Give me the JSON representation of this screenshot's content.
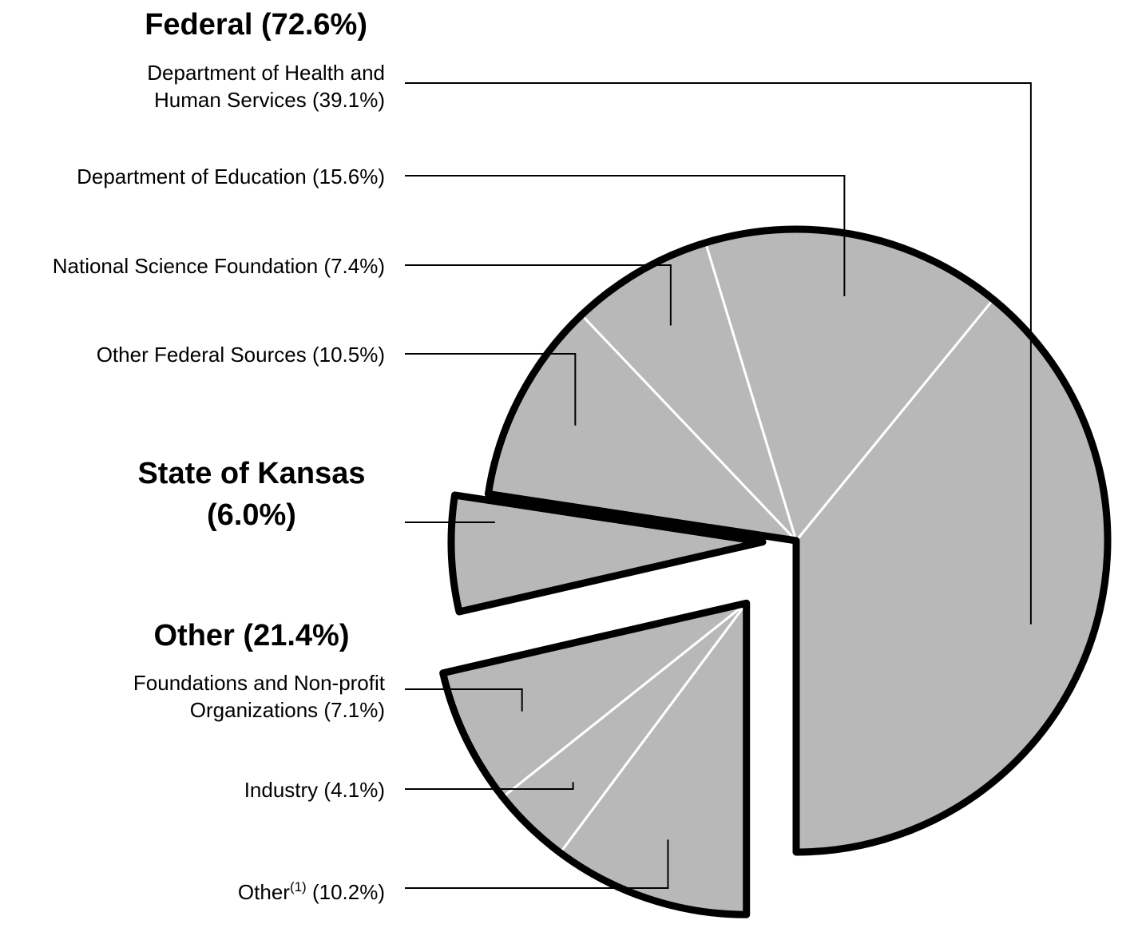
{
  "chart_data": {
    "type": "pie",
    "color": "#b8b8b8",
    "groups": [
      {
        "name": "Federal",
        "value": 72.6,
        "value_label": "(72.6%)",
        "slices": [
          {
            "name": "Department of Health and Human Services",
            "value": 39.1,
            "value_label": "(39.1%)"
          },
          {
            "name": "Department of Education",
            "value": 15.6,
            "value_label": "(15.6%)"
          },
          {
            "name": "National Science Foundation",
            "value": 7.4,
            "value_label": "(7.4%)"
          },
          {
            "name": "Other Federal Sources",
            "value": 10.5,
            "value_label": "(10.5%)"
          }
        ]
      },
      {
        "name": "State of Kansas",
        "value": 6.0,
        "value_label": "(6.0%)",
        "slices": []
      },
      {
        "name": "Other",
        "value": 21.4,
        "value_label": "(21.4%)",
        "slices": [
          {
            "name": "Foundations and Non-profit Organizations",
            "value": 7.1,
            "value_label": "(7.1%)"
          },
          {
            "name": "Industry",
            "value": 4.1,
            "value_label": "(4.1%)"
          },
          {
            "name": "Other",
            "note": "(1)",
            "value": 10.2,
            "value_label": "(10.2%)"
          }
        ]
      }
    ]
  }
}
